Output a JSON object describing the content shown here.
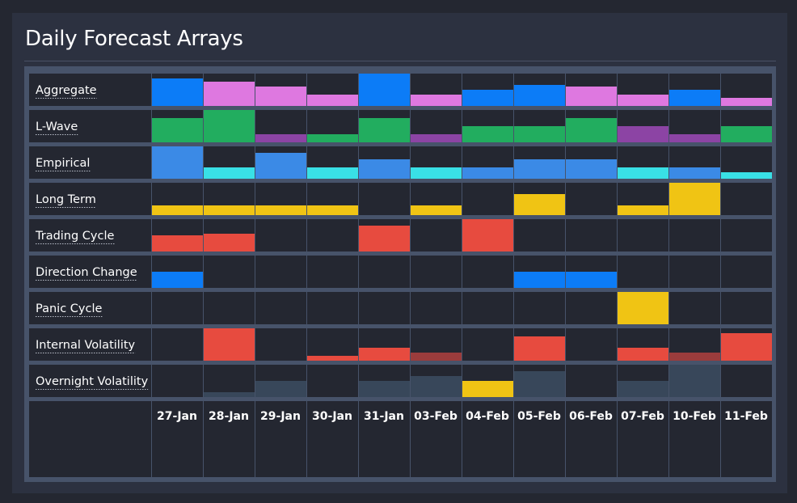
{
  "title": "Daily Forecast Arrays",
  "chart_data": {
    "type": "heatmap",
    "title": "Daily Forecast Arrays",
    "dates": [
      "27-Jan",
      "28-Jan",
      "29-Jan",
      "30-Jan",
      "31-Jan",
      "03-Feb",
      "04-Feb",
      "05-Feb",
      "06-Feb",
      "07-Feb",
      "10-Feb",
      "11-Feb"
    ],
    "value_scale": [
      0,
      1
    ],
    "rows": [
      {
        "label": "Aggregate",
        "values": [
          0.85,
          0.75,
          0.6,
          0.35,
          1.0,
          0.35,
          0.5,
          0.65,
          0.6,
          0.35,
          0.5,
          0.25
        ],
        "colors": [
          "#0c7cf7",
          "#de78e0",
          "#de78e0",
          "#de78e0",
          "#0c7cf7",
          "#de78e0",
          "#0c7cf7",
          "#0c7cf7",
          "#de78e0",
          "#de78e0",
          "#0c7cf7",
          "#de78e0"
        ]
      },
      {
        "label": "L-Wave",
        "values": [
          0.75,
          1.0,
          0.25,
          0.25,
          0.75,
          0.25,
          0.5,
          0.5,
          0.75,
          0.5,
          0.25,
          0.5
        ],
        "colors": [
          "#22ad5f",
          "#22ad5f",
          "#8c44a4",
          "#22ad5f",
          "#22ad5f",
          "#8c44a4",
          "#22ad5f",
          "#22ad5f",
          "#22ad5f",
          "#8c44a4",
          "#8c44a4",
          "#22ad5f"
        ]
      },
      {
        "label": "Empirical",
        "values": [
          1.0,
          0.35,
          0.8,
          0.35,
          0.6,
          0.35,
          0.35,
          0.6,
          0.6,
          0.35,
          0.35,
          0.2
        ],
        "colors": [
          "#3b8ae6",
          "#39e0e6",
          "#3b8ae6",
          "#39e0e6",
          "#3b8ae6",
          "#39e0e6",
          "#3b8ae6",
          "#3b8ae6",
          "#3b8ae6",
          "#39e0e6",
          "#3b8ae6",
          "#39e0e6"
        ]
      },
      {
        "label": "Long Term",
        "values": [
          0.3,
          0.3,
          0.3,
          0.3,
          0,
          0.3,
          0,
          0.65,
          0,
          0.3,
          1.0,
          0
        ],
        "colors": [
          "#f0c414",
          "#f0c414",
          "#f0c414",
          "#f0c414",
          "#f0c414",
          "#f0c414",
          "#f0c414",
          "#f0c414",
          "#f0c414",
          "#f0c414",
          "#f0c414",
          "#f0c414"
        ]
      },
      {
        "label": "Trading Cycle",
        "values": [
          0.5,
          0.55,
          0,
          0,
          0.8,
          0,
          1.0,
          0,
          0,
          0,
          0,
          0
        ],
        "colors": [
          "#e74b3f",
          "#e74b3f",
          "#e74b3f",
          "#e74b3f",
          "#e74b3f",
          "#e74b3f",
          "#e74b3f",
          "#e74b3f",
          "#e74b3f",
          "#e74b3f",
          "#e74b3f",
          "#e74b3f"
        ]
      },
      {
        "label": "Direction Change",
        "values": [
          0.5,
          0,
          0,
          0,
          0,
          0,
          0,
          0.5,
          0.5,
          0,
          0,
          0
        ],
        "colors": [
          "#0c7cf7",
          "#0c7cf7",
          "#0c7cf7",
          "#0c7cf7",
          "#0c7cf7",
          "#0c7cf7",
          "#0c7cf7",
          "#0c7cf7",
          "#0c7cf7",
          "#0c7cf7",
          "#0c7cf7",
          "#0c7cf7"
        ]
      },
      {
        "label": "Panic Cycle",
        "values": [
          0,
          0,
          0,
          0,
          0,
          0,
          0,
          0,
          0,
          1.0,
          0,
          0
        ],
        "colors": [
          "#f0c414",
          "#f0c414",
          "#f0c414",
          "#f0c414",
          "#f0c414",
          "#f0c414",
          "#f0c414",
          "#f0c414",
          "#f0c414",
          "#f0c414",
          "#f0c414",
          "#f0c414"
        ]
      },
      {
        "label": "Internal Volatility",
        "values": [
          0,
          1.0,
          0,
          0.15,
          0.4,
          0.25,
          0,
          0.75,
          0,
          0.4,
          0.25,
          0.85
        ],
        "colors": [
          "#e74b3f",
          "#e74b3f",
          "#e74b3f",
          "#e74b3f",
          "#e74b3f",
          "#9b3c3c",
          "#e74b3f",
          "#e74b3f",
          "#e74b3f",
          "#e74b3f",
          "#9b3c3c",
          "#e74b3f"
        ]
      },
      {
        "label": "Overnight Volatility",
        "values": [
          0,
          0.15,
          0.5,
          0,
          0.5,
          0.65,
          0.5,
          0.8,
          0,
          0.5,
          1.0,
          0
        ],
        "colors": [
          "#38475a",
          "#38475a",
          "#38475a",
          "#38475a",
          "#38475a",
          "#38475a",
          "#f0c414",
          "#38475a",
          "#38475a",
          "#38475a",
          "#38475a",
          "#38475a"
        ]
      }
    ]
  }
}
